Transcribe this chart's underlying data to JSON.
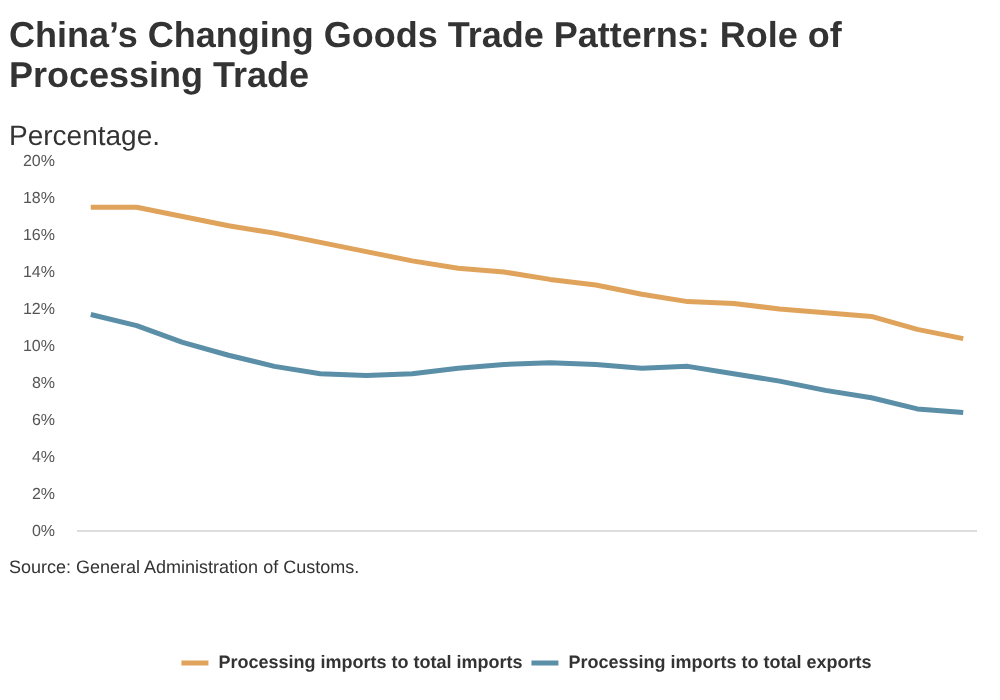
{
  "chart_data": {
    "type": "line",
    "title": "China’s Changing Goods Trade Patterns: Role of Processing Trade",
    "subtitle": "Percentage.",
    "annotations": [
      "Source: General Administration of Customs."
    ],
    "categories": [
      null,
      null,
      null,
      null,
      null,
      null,
      null,
      null,
      null,
      null,
      null,
      null,
      null,
      null,
      null,
      null,
      null,
      null,
      null,
      null
    ],
    "series": [
      {
        "name": "Processing imports to total imports",
        "color": "#e0a35c",
        "values": [
          17.5,
          17.5,
          17.0,
          16.5,
          16.1,
          15.6,
          15.1,
          14.6,
          14.2,
          14.0,
          13.6,
          13.3,
          12.8,
          12.4,
          12.3,
          12.0,
          11.8,
          11.6,
          10.9,
          10.4
        ]
      },
      {
        "name": "Processing imports to total exports",
        "color": "#5b8fa8",
        "values": [
          11.7,
          11.1,
          10.2,
          9.5,
          8.9,
          8.5,
          8.4,
          8.5,
          8.8,
          9.0,
          9.1,
          9.0,
          8.8,
          8.9,
          8.5,
          8.1,
          7.6,
          7.2,
          6.6,
          6.4
        ]
      }
    ],
    "ylim": [
      0,
      20
    ],
    "yticks": [
      {
        "value": 0,
        "label": "0%"
      },
      {
        "value": 2,
        "label": "2%"
      },
      {
        "value": 4,
        "label": "4%"
      },
      {
        "value": 6,
        "label": "6%"
      },
      {
        "value": 8,
        "label": "8%"
      },
      {
        "value": 10,
        "label": "10%"
      },
      {
        "value": 12,
        "label": "12%"
      },
      {
        "value": 14,
        "label": "14%"
      },
      {
        "value": 16,
        "label": "16%"
      },
      {
        "value": 18,
        "label": "18%"
      },
      {
        "value": 20,
        "label": "20%"
      }
    ],
    "tick_labels": "y",
    "grid": false,
    "legend": "bottom",
    "marker": "none",
    "line_style": "solid"
  }
}
